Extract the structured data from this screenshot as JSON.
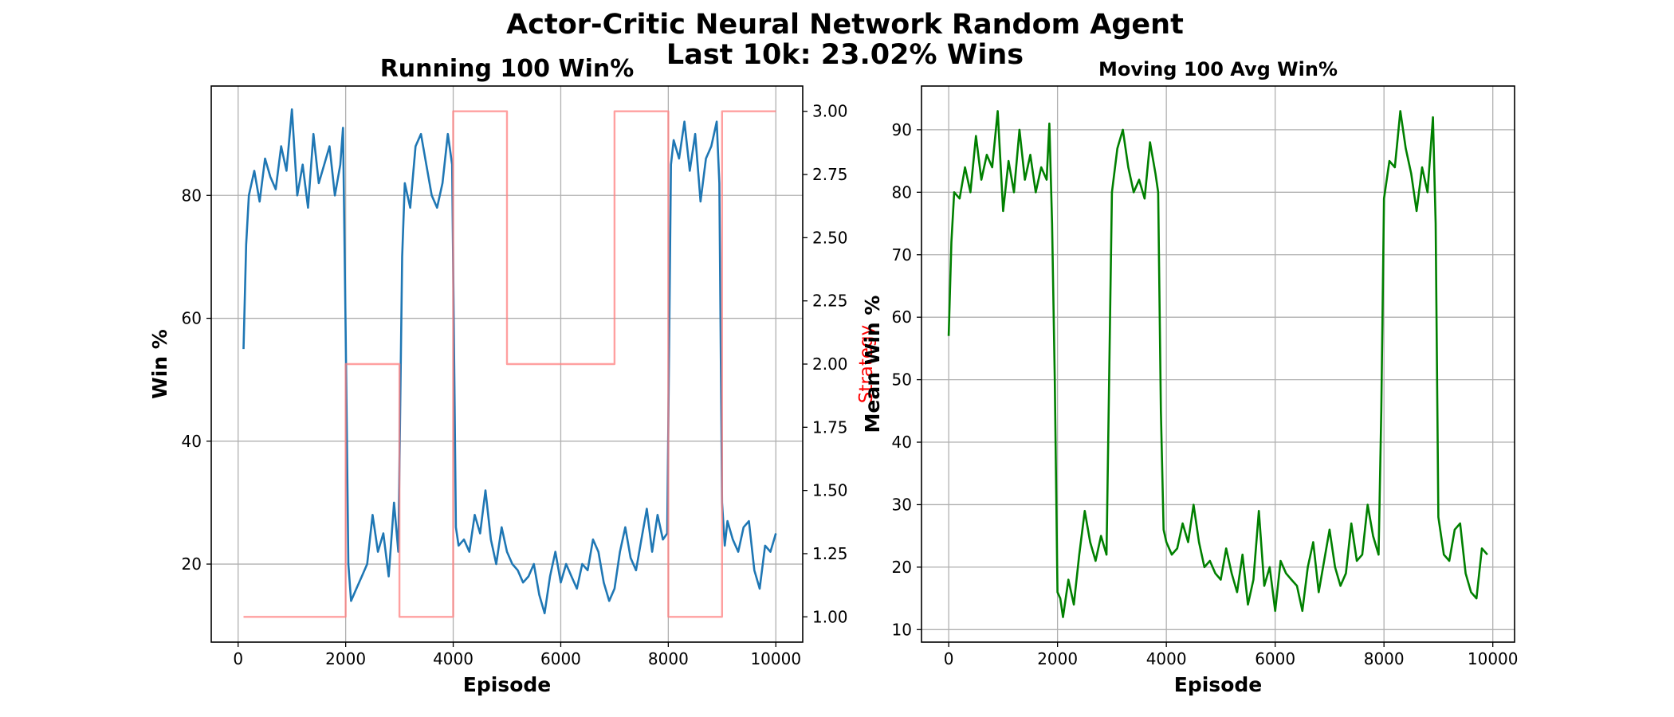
{
  "figure": {
    "title_line1": "Actor-Critic Neural Network Random Agent",
    "title_line2": "Last 10k: 23.02% Wins"
  },
  "chart_data": [
    {
      "type": "line",
      "title": "Running 100 Win%",
      "xlabel": "Episode",
      "ylabel": "Win %",
      "y2label": "Strategy",
      "xlim": [
        -500,
        10500
      ],
      "ylim": [
        7.3,
        97.8
      ],
      "y2lim": [
        0.9,
        3.1
      ],
      "xticks": [
        0,
        2000,
        4000,
        6000,
        8000,
        10000
      ],
      "yticks": [
        20,
        40,
        60,
        80
      ],
      "y2ticks": [
        "1.00",
        "1.25",
        "1.50",
        "1.75",
        "2.00",
        "2.25",
        "2.50",
        "2.75",
        "3.00"
      ],
      "grid": true,
      "series": [
        {
          "color": "#1f77b4",
          "axis": "left",
          "x": [
            100,
            150,
            200,
            300,
            400,
            500,
            600,
            700,
            800,
            900,
            1000,
            1100,
            1200,
            1300,
            1400,
            1500,
            1600,
            1700,
            1800,
            1900,
            1950,
            2000,
            2050,
            2100,
            2200,
            2300,
            2400,
            2500,
            2600,
            2700,
            2800,
            2900,
            2980,
            3050,
            3100,
            3200,
            3300,
            3400,
            3500,
            3600,
            3700,
            3800,
            3900,
            3980,
            4050,
            4100,
            4200,
            4300,
            4400,
            4500,
            4600,
            4700,
            4800,
            4900,
            5000,
            5100,
            5200,
            5300,
            5400,
            5500,
            5600,
            5700,
            5800,
            5900,
            6000,
            6100,
            6200,
            6300,
            6400,
            6500,
            6600,
            6700,
            6800,
            6900,
            7000,
            7100,
            7200,
            7300,
            7400,
            7500,
            7600,
            7700,
            7800,
            7900,
            7980,
            8050,
            8100,
            8200,
            8300,
            8400,
            8500,
            8600,
            8700,
            8800,
            8900,
            8950,
            9000,
            9050,
            9100,
            9200,
            9300,
            9400,
            9500,
            9600,
            9700,
            9800,
            9900,
            10000
          ],
          "y": [
            55,
            72,
            80,
            84,
            79,
            86,
            83,
            81,
            88,
            84,
            94,
            80,
            85,
            78,
            90,
            82,
            85,
            88,
            80,
            85,
            91,
            58,
            20,
            14,
            16,
            18,
            20,
            28,
            22,
            25,
            18,
            30,
            22,
            70,
            82,
            78,
            88,
            90,
            85,
            80,
            78,
            82,
            90,
            85,
            26,
            23,
            24,
            22,
            28,
            25,
            32,
            24,
            20,
            26,
            22,
            20,
            19,
            17,
            18,
            20,
            15,
            12,
            18,
            22,
            17,
            20,
            18,
            16,
            20,
            19,
            24,
            22,
            17,
            14,
            16,
            22,
            26,
            21,
            19,
            24,
            29,
            22,
            28,
            24,
            25,
            85,
            89,
            86,
            92,
            84,
            90,
            79,
            86,
            88,
            92,
            82,
            30,
            23,
            27,
            24,
            22,
            26,
            27,
            19,
            16,
            23,
            22,
            25
          ]
        },
        {
          "color": "#ff8080",
          "axis": "right",
          "x": [
            100,
            2000,
            2000,
            3000,
            3000,
            4000,
            4000,
            5000,
            5000,
            7000,
            7000,
            8000,
            8000,
            9000,
            9000,
            10000
          ],
          "y": [
            1,
            1,
            2,
            2,
            1,
            1,
            3,
            3,
            2,
            2,
            3,
            3,
            1,
            1,
            3,
            3
          ]
        }
      ]
    },
    {
      "type": "line",
      "title": "Moving 100 Avg Win%",
      "xlabel": "Episode",
      "ylabel": "Mean Win %",
      "xlim": [
        -500,
        10400
      ],
      "ylim": [
        8,
        97
      ],
      "xticks": [
        0,
        2000,
        4000,
        6000,
        8000,
        10000
      ],
      "yticks": [
        10,
        20,
        30,
        40,
        50,
        60,
        70,
        80,
        90
      ],
      "grid": true,
      "series": [
        {
          "color": "#008000",
          "x": [
            0,
            50,
            100,
            200,
            300,
            400,
            500,
            600,
            700,
            800,
            900,
            1000,
            1100,
            1200,
            1300,
            1400,
            1500,
            1600,
            1700,
            1800,
            1850,
            1900,
            1950,
            2000,
            2050,
            2100,
            2200,
            2300,
            2400,
            2500,
            2600,
            2700,
            2800,
            2900,
            3000,
            3100,
            3200,
            3300,
            3400,
            3500,
            3600,
            3700,
            3800,
            3850,
            3900,
            3950,
            4000,
            4100,
            4200,
            4300,
            4400,
            4500,
            4600,
            4700,
            4800,
            4900,
            5000,
            5100,
            5200,
            5300,
            5400,
            5500,
            5600,
            5700,
            5800,
            5900,
            6000,
            6100,
            6200,
            6300,
            6400,
            6500,
            6600,
            6700,
            6800,
            6900,
            7000,
            7100,
            7200,
            7300,
            7400,
            7500,
            7600,
            7700,
            7800,
            7900,
            7950,
            8000,
            8100,
            8200,
            8300,
            8400,
            8500,
            8600,
            8700,
            8800,
            8900,
            8950,
            9000,
            9100,
            9200,
            9300,
            9400,
            9500,
            9600,
            9700,
            9800,
            9900
          ],
          "y": [
            57,
            72,
            80,
            79,
            84,
            80,
            89,
            82,
            86,
            84,
            93,
            77,
            85,
            80,
            90,
            82,
            86,
            80,
            84,
            82,
            91,
            75,
            50,
            16,
            15,
            12,
            18,
            14,
            22,
            29,
            24,
            21,
            25,
            22,
            80,
            87,
            90,
            84,
            80,
            82,
            79,
            88,
            83,
            80,
            45,
            26,
            24,
            22,
            23,
            27,
            24,
            30,
            24,
            20,
            21,
            19,
            18,
            23,
            19,
            16,
            22,
            14,
            18,
            29,
            17,
            20,
            13,
            21,
            19,
            18,
            17,
            13,
            20,
            24,
            16,
            21,
            26,
            20,
            17,
            19,
            27,
            21,
            22,
            30,
            25,
            22,
            45,
            79,
            85,
            84,
            93,
            87,
            83,
            77,
            84,
            80,
            92,
            75,
            28,
            22,
            21,
            26,
            27,
            19,
            16,
            15,
            23,
            22
          ]
        }
      ]
    }
  ]
}
